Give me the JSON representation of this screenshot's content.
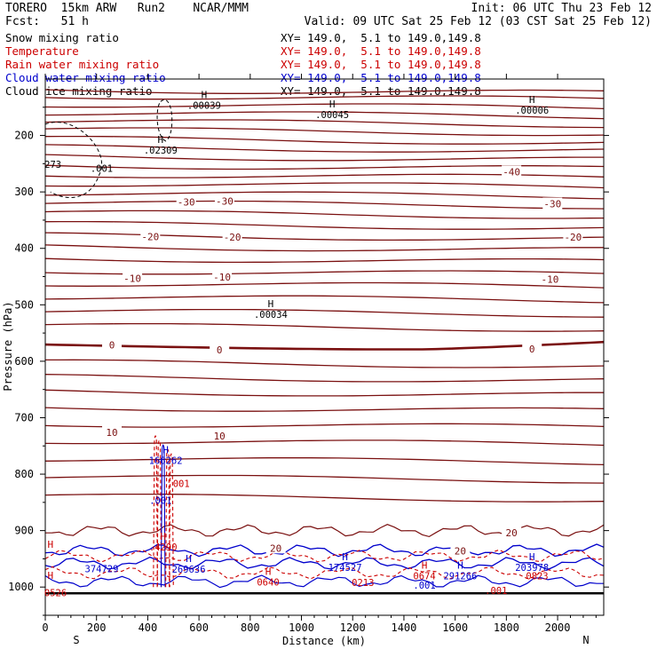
{
  "header": {
    "model": "TORERO  15km ARW   Run2    NCAR/MMM",
    "init": "Init: 06 UTC Thu 23 Feb 12",
    "fcst": "Fcst:   51 h",
    "valid": "Valid: 09 UTC Sat 25 Feb 12 (03 CST Sat 25 Feb 12)"
  },
  "legend": [
    {
      "name": "Snow mixing ratio",
      "xy": "XY= 149.0,  5.1 to 149.0,149.8",
      "color": "#000000"
    },
    {
      "name": "Temperature",
      "xy": "XY= 149.0,  5.1 to 149.0,149.8",
      "color": "#cc0000"
    },
    {
      "name": "Rain water mixing ratio",
      "xy": "XY= 149.0,  5.1 to 149.0,149.8",
      "color": "#cc0000"
    },
    {
      "name": "Cloud water mixing ratio",
      "xy": "XY= 149.0,  5.1 to 149.0,149.8",
      "color": "#0000cc"
    },
    {
      "name": "Cloud ice mixing ratio",
      "xy": "XY= 149.0,  5.1 to 149.0,149.8",
      "color": "#000000"
    }
  ],
  "chart_data": {
    "type": "contour",
    "xlabel": "Distance (km)",
    "ylabel": "Pressure (hPa)",
    "xlim": [
      0,
      2180
    ],
    "ylim": [
      1050,
      100
    ],
    "x_ticks": [
      0,
      200,
      400,
      600,
      800,
      1000,
      1200,
      1400,
      1600,
      1800,
      2000
    ],
    "y_ticks": [
      200,
      300,
      400,
      500,
      600,
      700,
      800,
      900,
      1000
    ],
    "orientation": {
      "left": "S",
      "right": "N"
    },
    "isotherm_labels": [
      {
        "label": "-40",
        "x": 1820,
        "p": 264
      },
      {
        "label": "-30",
        "x": 550,
        "p": 318
      },
      {
        "label": "-30",
        "x": 700,
        "p": 316
      },
      {
        "label": "-30",
        "x": 1980,
        "p": 321
      },
      {
        "label": "-20",
        "x": 410,
        "p": 379
      },
      {
        "label": "-20",
        "x": 730,
        "p": 380
      },
      {
        "label": "-20",
        "x": 2060,
        "p": 380
      },
      {
        "label": "-10",
        "x": 340,
        "p": 453
      },
      {
        "label": "-10",
        "x": 690,
        "p": 451
      },
      {
        "label": "-10",
        "x": 1970,
        "p": 455
      },
      {
        "label": "0",
        "x": 260,
        "p": 571
      },
      {
        "label": "0",
        "x": 680,
        "p": 580
      },
      {
        "label": "0",
        "x": 1900,
        "p": 578
      },
      {
        "label": "10",
        "x": 260,
        "p": 726
      },
      {
        "label": "10",
        "x": 680,
        "p": 732
      },
      {
        "label": "20",
        "x": 900,
        "p": 931
      },
      {
        "label": "20",
        "x": 1620,
        "p": 936
      },
      {
        "label": "20",
        "x": 1820,
        "p": 904
      }
    ],
    "extrema_labels": [
      {
        "marker": "H",
        "value": ".00039",
        "x": 620,
        "p": 143,
        "color": "#000000"
      },
      {
        "marker": "H",
        "value": ".00045",
        "x": 1120,
        "p": 160,
        "color": "#000000"
      },
      {
        "marker": "H",
        "value": ".00006",
        "x": 1900,
        "p": 152,
        "color": "#000000"
      },
      {
        "marker": "H",
        "value": ".02309",
        "x": 450,
        "p": 223,
        "color": "#000000"
      },
      {
        "marker": "",
        "value": ".001",
        "x": 220,
        "p": 255,
        "color": "#000000"
      },
      {
        "marker": "",
        "value": "273",
        "x": 30,
        "p": 248,
        "color": "#000000"
      },
      {
        "marker": "H",
        "value": ".00034",
        "x": 880,
        "p": 514,
        "color": "#000000"
      },
      {
        "marker": "H",
        "value": "166262",
        "x": 470,
        "p": 772,
        "color": "#0000cc"
      },
      {
        "marker": "",
        "value": ".001",
        "x": 520,
        "p": 813,
        "color": "#cc0000"
      },
      {
        "marker": "",
        "value": ".001",
        "x": 450,
        "p": 843,
        "color": "#0000cc"
      },
      {
        "marker": "H",
        "value": ".4290",
        "x": 460,
        "p": 926,
        "color": "#cc0000"
      },
      {
        "marker": "",
        "value": "374729",
        "x": 220,
        "p": 964,
        "color": "#0000cc"
      },
      {
        "marker": "H",
        "value": "269636",
        "x": 560,
        "p": 965,
        "color": "#0000cc"
      },
      {
        "marker": "H",
        "value": "174527",
        "x": 1170,
        "p": 962,
        "color": "#0000cc"
      },
      {
        "marker": "H",
        "value": "0674",
        "x": 1480,
        "p": 977,
        "color": "#cc0000"
      },
      {
        "marker": "H",
        "value": "291266",
        "x": 1620,
        "p": 977,
        "color": "#0000cc"
      },
      {
        "marker": "H",
        "value": "203978",
        "x": 1900,
        "p": 962,
        "color": "#0000cc"
      },
      {
        "marker": "",
        "value": "0823",
        "x": 1920,
        "p": 977,
        "color": "#cc0000"
      },
      {
        "marker": "H",
        "value": "0640",
        "x": 870,
        "p": 988,
        "color": "#cc0000"
      },
      {
        "marker": "",
        "value": "0213",
        "x": 1240,
        "p": 989,
        "color": "#cc0000"
      },
      {
        "marker": "",
        "value": ".001",
        "x": 1480,
        "p": 993,
        "color": "#0000cc"
      },
      {
        "marker": "",
        "value": ".001",
        "x": 1760,
        "p": 1003,
        "color": "#cc0000"
      },
      {
        "marker": "H",
        "value": "",
        "x": 20,
        "p": 940,
        "color": "#cc0000"
      },
      {
        "marker": "",
        "value": "0526",
        "x": 40,
        "p": 1007,
        "color": "#cc0000"
      },
      {
        "marker": "H",
        "value": "",
        "x": 20,
        "p": 995,
        "color": "#cc0000"
      }
    ]
  }
}
